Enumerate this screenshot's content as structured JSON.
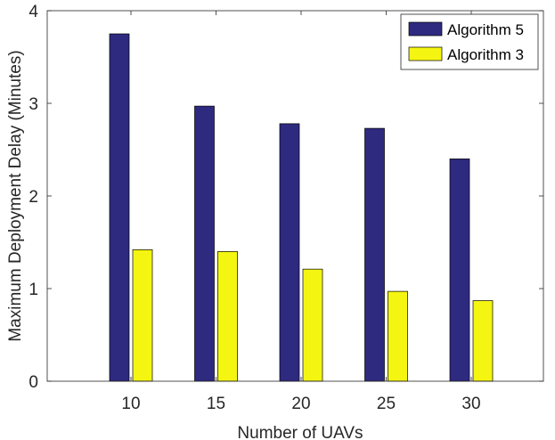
{
  "chart_data": {
    "type": "bar",
    "title": "",
    "xlabel": "Number of UAVs",
    "ylabel": "Maximum Deployment Delay (Minutes)",
    "categories": [
      "10",
      "15",
      "20",
      "25",
      "30"
    ],
    "ylim": [
      0,
      4
    ],
    "yticks": [
      "0",
      "1",
      "2",
      "3",
      "4"
    ],
    "grid": false,
    "legend_position": "top-right",
    "series": [
      {
        "name": "Algorithm 5",
        "color": "#2e2a80",
        "values": [
          3.75,
          2.97,
          2.78,
          2.73,
          2.4
        ]
      },
      {
        "name": "Algorithm 3",
        "color": "#f5f512",
        "values": [
          1.42,
          1.4,
          1.21,
          0.97,
          0.87
        ]
      }
    ]
  }
}
